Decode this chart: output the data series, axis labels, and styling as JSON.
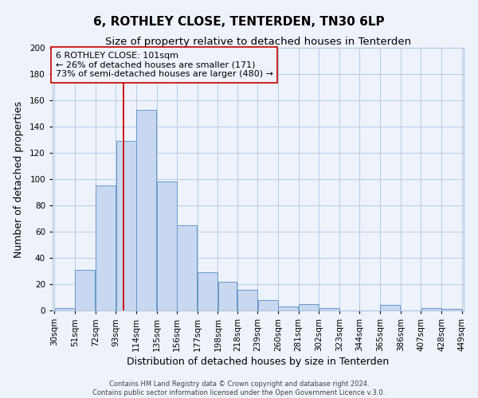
{
  "title": "6, ROTHLEY CLOSE, TENTERDEN, TN30 6LP",
  "subtitle": "Size of property relative to detached houses in Tenterden",
  "xlabel": "Distribution of detached houses by size in Tenterden",
  "ylabel": "Number of detached properties",
  "footer_line1": "Contains HM Land Registry data © Crown copyright and database right 2024.",
  "footer_line2": "Contains public sector information licensed under the Open Government Licence v.3.0.",
  "bins": [
    30,
    51,
    72,
    93,
    114,
    135,
    156,
    177,
    198,
    218,
    239,
    260,
    281,
    302,
    323,
    344,
    365,
    386,
    407,
    428,
    449
  ],
  "counts": [
    2,
    31,
    95,
    129,
    153,
    98,
    65,
    29,
    22,
    16,
    8,
    3,
    5,
    2,
    0,
    0,
    4,
    0,
    2,
    1
  ],
  "bar_color": "#c8d8f0",
  "bar_edge_color": "#6699cc",
  "grid_color": "#b0c4de",
  "vline_x": 101,
  "vline_color": "#cc0000",
  "annotation_line1": "6 ROTHLEY CLOSE: 101sqm",
  "annotation_line2": "← 26% of detached houses are smaller (171)",
  "annotation_line3": "73% of semi-detached houses are larger (480) →",
  "annotation_box_edge": "#cc0000",
  "ylim": [
    0,
    200
  ],
  "yticks": [
    0,
    20,
    40,
    60,
    80,
    100,
    120,
    140,
    160,
    180,
    200
  ],
  "bg_color": "#eef2fa",
  "title_fontsize": 11,
  "subtitle_fontsize": 9.5,
  "axis_label_fontsize": 9,
  "tick_fontsize": 7.5,
  "annotation_fontsize": 8
}
